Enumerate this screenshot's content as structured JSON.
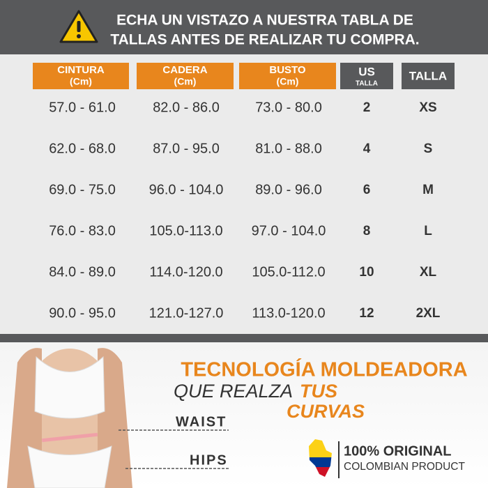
{
  "header": {
    "line1": "ECHA UN VISTAZO A NUESTRA TABLA DE",
    "line2": "TALLAS ANTES DE REALIZAR TU COMPRA."
  },
  "table": {
    "columns": [
      {
        "title": "CINTURA",
        "unit": "(Cm)"
      },
      {
        "title": "CADERA",
        "unit": "(Cm)"
      },
      {
        "title": "BUSTO",
        "unit": "(Cm)"
      },
      {
        "title": "US",
        "unit": "TALLA"
      },
      {
        "title": "TALLA"
      }
    ],
    "rows": [
      [
        "57.0 - 61.0",
        "82.0 - 86.0",
        "73.0 - 80.0",
        "2",
        "XS"
      ],
      [
        "62.0 - 68.0",
        "87.0 - 95.0",
        "81.0 - 88.0",
        "4",
        "S"
      ],
      [
        "69.0 - 75.0",
        "96.0 - 104.0",
        "89.0 - 96.0",
        "6",
        "M"
      ],
      [
        "76.0 - 83.0",
        "105.0-113.0",
        "97.0 - 104.0",
        "8",
        "L"
      ],
      [
        "84.0 - 89.0",
        "114.0-120.0",
        "105.0-112.0",
        "10",
        "XL"
      ],
      [
        "90.0 - 95.0",
        "121.0-127.0",
        "113.0-120.0",
        "12",
        "2XL"
      ]
    ]
  },
  "tagline": {
    "line1": "TECNOLOGÍA MOLDEADORA",
    "line2a": "QUE REALZA",
    "line2b": "TUS",
    "line3": "CURVAS"
  },
  "body_labels": [
    "WAIST",
    "HIPS"
  ],
  "badge": {
    "title": "100% ORIGINAL",
    "subtitle": "COLOMBIAN PRODUCT"
  }
}
